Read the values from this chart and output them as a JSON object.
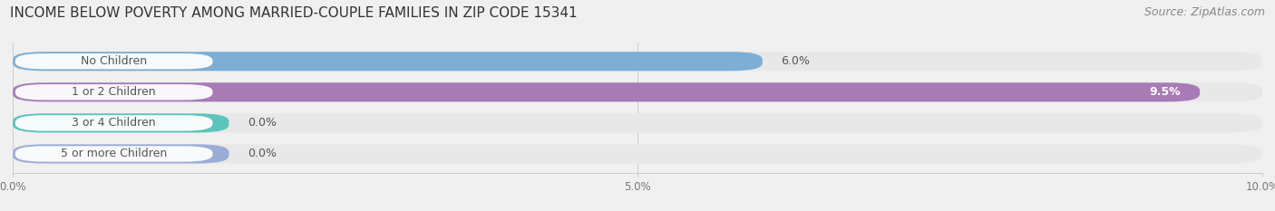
{
  "title": "INCOME BELOW POVERTY AMONG MARRIED-COUPLE FAMILIES IN ZIP CODE 15341",
  "source": "Source: ZipAtlas.com",
  "categories": [
    "No Children",
    "1 or 2 Children",
    "3 or 4 Children",
    "5 or more Children"
  ],
  "values": [
    6.0,
    9.5,
    0.0,
    0.0
  ],
  "bar_colors": [
    "#7eaed4",
    "#a87bb5",
    "#5cc4bc",
    "#9bacd6"
  ],
  "bg_color": "#e8e8e8",
  "value_labels": [
    "6.0%",
    "9.5%",
    "0.0%",
    "0.0%"
  ],
  "value_inside": [
    false,
    true,
    false,
    false
  ],
  "xlim": [
    0,
    10.0
  ],
  "xticks": [
    0.0,
    5.0,
    10.0
  ],
  "xticklabels": [
    "0.0%",
    "5.0%",
    "10.0%"
  ],
  "title_fontsize": 11,
  "source_fontsize": 9,
  "label_fontsize": 9,
  "value_fontsize": 9,
  "background_color": "#f0f0f0"
}
